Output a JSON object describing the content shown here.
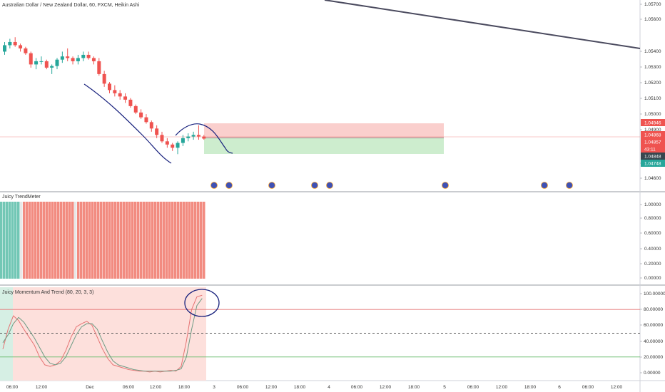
{
  "main": {
    "title": "Australian Dollar / New Zealand Dollar, 60, FXCM, Heikin Ashi",
    "y_ticks": [
      "1.05700",
      "1.05600",
      "1.05400",
      "1.05300",
      "1.05200",
      "1.05100",
      "1.05000",
      "1.04900",
      "1.04700",
      "1.04600"
    ],
    "badges": [
      {
        "text": "1.04946",
        "color": "#ef5350"
      },
      {
        "text": "1.04868",
        "color": "#ef5350"
      },
      {
        "text": "1.04857",
        "color": "#ef5350"
      },
      {
        "text": "43:11",
        "color": "#ef5350"
      },
      {
        "text": "1.04848",
        "color": "#37474f"
      },
      {
        "text": "1.04748",
        "color": "#26a69a"
      }
    ]
  },
  "trend": {
    "title": "Juicy TrendMeter",
    "y_ticks": [
      "1.00000",
      "0.80000",
      "0.60000",
      "0.40000",
      "0.20000",
      "0.00000"
    ]
  },
  "momentum": {
    "title": "Juicy Momentum And Trend (80, 20, 3, 3)",
    "y_ticks": [
      "100.00000",
      "80.00000",
      "60.00000",
      "40.00000",
      "20.00000",
      "0.00000"
    ]
  },
  "x_axis": {
    "ticks": [
      "06:00",
      "12:00",
      "Dec",
      "06:00",
      "12:00",
      "18:00",
      "3",
      "06:00",
      "12:00",
      "18:00",
      "4",
      "06:00",
      "12:00",
      "18:00",
      "5",
      "06:00",
      "12:00",
      "18:00",
      "6",
      "06:00",
      "12:00"
    ]
  },
  "colors": {
    "up": "#26a69a",
    "down": "#ef5350",
    "drawing": "#1a237e",
    "trendline": "#4a4a5e"
  },
  "chart_data": [
    {
      "type": "candlestick",
      "title": "Australian Dollar / New Zealand Dollar, 60, FXCM, Heikin Ashi",
      "ylim": [
        1.0455,
        1.0575
      ],
      "candles": [
        [
          1.054,
          1.0546,
          1.0538,
          1.0544
        ],
        [
          1.0544,
          1.0548,
          1.0542,
          1.0546
        ],
        [
          1.0546,
          1.0549,
          1.0543,
          1.0544
        ],
        [
          1.0544,
          1.0545,
          1.054,
          1.0542
        ],
        [
          1.0542,
          1.0543,
          1.0538,
          1.0539
        ],
        [
          1.0539,
          1.054,
          1.053,
          1.0532
        ],
        [
          1.0532,
          1.0536,
          1.0529,
          1.0534
        ],
        [
          1.0534,
          1.0537,
          1.0532,
          1.0534
        ],
        [
          1.0534,
          1.0535,
          1.0529,
          1.053
        ],
        [
          1.053,
          1.0532,
          1.0526,
          1.0531
        ],
        [
          1.0531,
          1.0536,
          1.0529,
          1.0535
        ],
        [
          1.0535,
          1.054,
          1.0533,
          1.0537
        ],
        [
          1.0537,
          1.0542,
          1.0534,
          1.0536
        ],
        [
          1.0536,
          1.0537,
          1.0532,
          1.0534
        ],
        [
          1.0534,
          1.0538,
          1.0532,
          1.0536
        ],
        [
          1.0536,
          1.054,
          1.0534,
          1.0538
        ],
        [
          1.0538,
          1.054,
          1.0535,
          1.0536
        ],
        [
          1.0536,
          1.0537,
          1.0532,
          1.0534
        ],
        [
          1.0534,
          1.0536,
          1.0525,
          1.0526
        ],
        [
          1.0526,
          1.0528,
          1.0518,
          1.052
        ],
        [
          1.052,
          1.0521,
          1.0514,
          1.0516
        ],
        [
          1.0516,
          1.0519,
          1.0512,
          1.0514
        ],
        [
          1.0514,
          1.0516,
          1.051,
          1.0512
        ],
        [
          1.0512,
          1.0514,
          1.0508,
          1.051
        ],
        [
          1.051,
          1.0511,
          1.0505,
          1.0506
        ],
        [
          1.0506,
          1.0507,
          1.0501,
          1.0502
        ],
        [
          1.0502,
          1.0504,
          1.0498,
          1.0499
        ],
        [
          1.0499,
          1.0501,
          1.0495,
          1.0496
        ],
        [
          1.0496,
          1.0497,
          1.049,
          1.0492
        ],
        [
          1.0492,
          1.0494,
          1.0486,
          1.0488
        ],
        [
          1.0488,
          1.049,
          1.0483,
          1.0484
        ],
        [
          1.0484,
          1.0486,
          1.048,
          1.0482
        ],
        [
          1.0482,
          1.0483,
          1.0478,
          1.048
        ],
        [
          1.048,
          1.0484,
          1.0476,
          1.0483
        ],
        [
          1.0483,
          1.0488,
          1.0481,
          1.0486
        ],
        [
          1.0486,
          1.0489,
          1.0484,
          1.0487
        ],
        [
          1.0487,
          1.049,
          1.0485,
          1.0488
        ],
        [
          1.0488,
          1.0494,
          1.0485,
          1.0487
        ],
        [
          1.0487,
          1.0488,
          1.0485,
          1.04857
        ]
      ],
      "position": {
        "entry": 1.04868,
        "stop": 1.04946,
        "target": 1.04748
      },
      "current_price": 1.04857
    },
    {
      "type": "bar",
      "title": "Juicy TrendMeter",
      "ylim": [
        0,
        1
      ],
      "bar_colors": [
        "up",
        "up",
        "up",
        "up",
        "up",
        "up",
        "up",
        "neutral",
        "down",
        "down",
        "down",
        "down",
        "down",
        "down",
        "down",
        "down",
        "down",
        "down",
        "down",
        "down",
        "down",
        "down",
        "down",
        "down",
        "down",
        "down",
        "neutral",
        "down",
        "down",
        "down",
        "down",
        "down",
        "down",
        "down",
        "down",
        "down",
        "down",
        "down",
        "down",
        "down",
        "down",
        "down",
        "down",
        "down",
        "down",
        "down",
        "down",
        "down",
        "down",
        "down",
        "down",
        "down",
        "down",
        "down",
        "down",
        "down",
        "down",
        "down",
        "down",
        "down",
        "down",
        "down",
        "down",
        "down",
        "down",
        "down",
        "down",
        "down",
        "down",
        "down",
        "down",
        "down"
      ]
    },
    {
      "type": "line",
      "title": "Juicy Momentum And Trend (80, 20, 3, 3)",
      "ylim": [
        -10,
        105
      ],
      "levels": [
        80,
        50,
        20
      ],
      "series": [
        {
          "values": [
            30,
            55,
            72,
            66,
            55,
            45,
            35,
            20,
            10,
            8,
            10,
            15,
            28,
            45,
            58,
            62,
            65,
            60,
            45,
            30,
            18,
            10,
            8,
            6,
            4,
            3,
            2,
            2,
            1,
            2,
            1,
            2,
            3,
            2,
            8,
            40,
            80,
            96,
            98
          ]
        },
        {
          "values": [
            38,
            48,
            62,
            70,
            64,
            54,
            44,
            32,
            20,
            12,
            10,
            12,
            20,
            34,
            48,
            58,
            62,
            62,
            55,
            40,
            26,
            15,
            10,
            8,
            6,
            4,
            3,
            2,
            2,
            2,
            2,
            2,
            2,
            3,
            5,
            20,
            55,
            85,
            94
          ]
        }
      ]
    }
  ]
}
